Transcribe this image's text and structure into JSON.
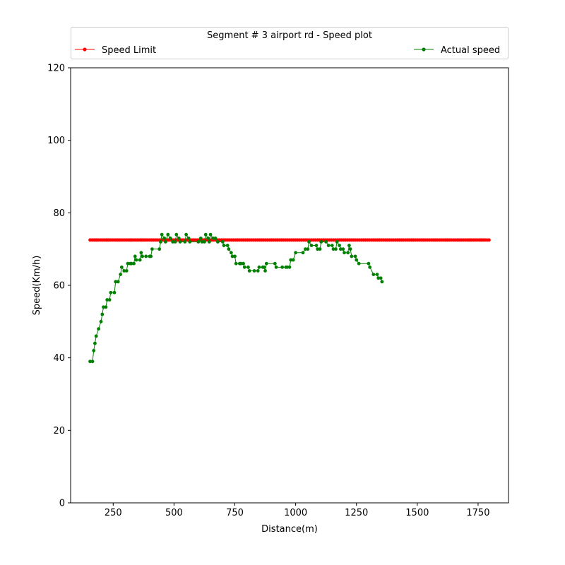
{
  "chart_data": {
    "type": "line",
    "legend_title": "Segment # 3 airport rd - Speed plot",
    "xlabel": "Distance(m)",
    "ylabel": "Speed(Km/h)",
    "xlim": [
      75,
      1875
    ],
    "ylim": [
      0,
      120
    ],
    "xticks": [
      "250",
      "500",
      "750",
      "1000",
      "1250",
      "1500",
      "1750"
    ],
    "yticks": [
      "0",
      "20",
      "40",
      "60",
      "80",
      "100",
      "120"
    ],
    "grid": false,
    "legend_placement": "above",
    "series": [
      {
        "name": "Speed Limit",
        "color": "#ff0000",
        "start": 155,
        "end": 1795,
        "value": 72.5
      },
      {
        "name": "Actual speed",
        "color": "#008000",
        "points": [
          [
            155,
            39
          ],
          [
            165,
            39
          ],
          [
            170,
            42
          ],
          [
            175,
            44
          ],
          [
            180,
            46
          ],
          [
            190,
            48
          ],
          [
            200,
            50
          ],
          [
            205,
            52
          ],
          [
            210,
            54
          ],
          [
            220,
            54
          ],
          [
            225,
            56
          ],
          [
            235,
            56
          ],
          [
            240,
            58
          ],
          [
            255,
            58
          ],
          [
            260,
            61
          ],
          [
            270,
            61
          ],
          [
            280,
            63
          ],
          [
            285,
            65
          ],
          [
            295,
            64
          ],
          [
            305,
            64
          ],
          [
            310,
            66
          ],
          [
            320,
            66
          ],
          [
            325,
            66
          ],
          [
            335,
            66
          ],
          [
            340,
            68
          ],
          [
            345,
            67
          ],
          [
            360,
            67
          ],
          [
            365,
            69
          ],
          [
            370,
            68
          ],
          [
            385,
            68
          ],
          [
            400,
            68
          ],
          [
            405,
            68
          ],
          [
            410,
            70
          ],
          [
            440,
            70
          ],
          [
            445,
            72
          ],
          [
            450,
            74
          ],
          [
            460,
            73
          ],
          [
            465,
            72
          ],
          [
            475,
            74
          ],
          [
            485,
            73
          ],
          [
            495,
            72
          ],
          [
            505,
            72
          ],
          [
            510,
            74
          ],
          [
            520,
            73
          ],
          [
            525,
            72
          ],
          [
            545,
            72
          ],
          [
            550,
            74
          ],
          [
            560,
            73
          ],
          [
            565,
            72
          ],
          [
            600,
            72
          ],
          [
            610,
            73
          ],
          [
            615,
            72
          ],
          [
            625,
            72
          ],
          [
            630,
            74
          ],
          [
            640,
            73
          ],
          [
            645,
            72
          ],
          [
            650,
            74
          ],
          [
            660,
            73
          ],
          [
            670,
            73
          ],
          [
            680,
            72
          ],
          [
            700,
            72
          ],
          [
            705,
            71
          ],
          [
            720,
            71
          ],
          [
            725,
            70
          ],
          [
            735,
            69
          ],
          [
            740,
            68
          ],
          [
            750,
            68
          ],
          [
            755,
            66
          ],
          [
            770,
            66
          ],
          [
            775,
            66
          ],
          [
            785,
            66
          ],
          [
            790,
            65
          ],
          [
            805,
            65
          ],
          [
            810,
            64
          ],
          [
            830,
            64
          ],
          [
            845,
            64
          ],
          [
            850,
            65
          ],
          [
            865,
            65
          ],
          [
            870,
            65
          ],
          [
            875,
            64
          ],
          [
            880,
            66
          ],
          [
            915,
            66
          ],
          [
            920,
            65
          ],
          [
            945,
            65
          ],
          [
            960,
            65
          ],
          [
            965,
            65
          ],
          [
            975,
            65
          ],
          [
            980,
            67
          ],
          [
            990,
            67
          ],
          [
            1000,
            69
          ],
          [
            1030,
            69
          ],
          [
            1040,
            70
          ],
          [
            1050,
            70
          ],
          [
            1055,
            72
          ],
          [
            1065,
            71
          ],
          [
            1085,
            71
          ],
          [
            1090,
            70
          ],
          [
            1100,
            70
          ],
          [
            1105,
            72
          ],
          [
            1125,
            72
          ],
          [
            1135,
            71
          ],
          [
            1150,
            71
          ],
          [
            1155,
            70
          ],
          [
            1165,
            70
          ],
          [
            1170,
            72
          ],
          [
            1180,
            71
          ],
          [
            1185,
            70
          ],
          [
            1195,
            70
          ],
          [
            1200,
            69
          ],
          [
            1215,
            69
          ],
          [
            1220,
            71
          ],
          [
            1225,
            70
          ],
          [
            1230,
            68
          ],
          [
            1245,
            68
          ],
          [
            1250,
            67
          ],
          [
            1260,
            66
          ],
          [
            1300,
            66
          ],
          [
            1305,
            65
          ],
          [
            1320,
            63
          ],
          [
            1335,
            63
          ],
          [
            1340,
            62
          ],
          [
            1350,
            62
          ],
          [
            1355,
            61
          ]
        ]
      }
    ]
  }
}
